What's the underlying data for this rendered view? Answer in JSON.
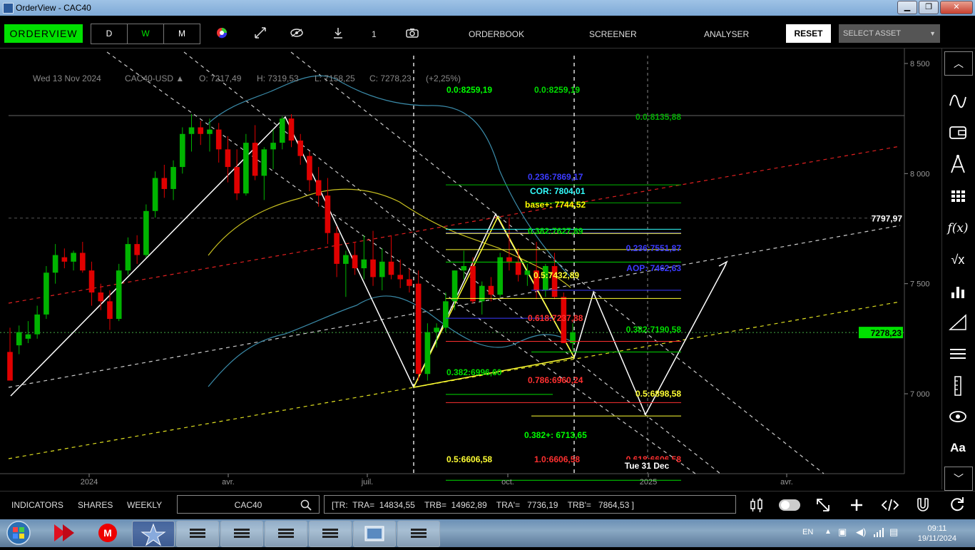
{
  "window": {
    "title": "OrderView - CAC40",
    "min": "▁",
    "max": "❐",
    "close": "✕"
  },
  "toolbar": {
    "overview_label": "ORDERVIEW",
    "periods": [
      "D",
      "W",
      "M"
    ],
    "count": "1",
    "orderbook": "ORDERBOOK",
    "screener": "SCREENER",
    "analyser": "ANALYSER",
    "reset": "RESET",
    "select_asset": "SELECT ASSET"
  },
  "colors": {
    "accent_green": "#00e000",
    "candle_up": "#00b400",
    "candle_down": "#e00000",
    "fib_green": "#00dd00",
    "fib_blue": "#3b3bff",
    "fib_red": "#ff3030",
    "fib_yellow": "#ffff33"
  },
  "chart_data": {
    "type": "candlestick",
    "header": {
      "date": "Wed 13 Nov 2024",
      "symbol": "CAC40-USD ▲",
      "open": "O: 7217,49",
      "high": "H: 7319,53",
      "low": "L: 7158,25",
      "close": "C: 7278,23",
      "change": "(+2,25%)"
    },
    "y_ticks": [
      8500,
      8000,
      7500,
      7000
    ],
    "y_tick_labels": [
      "8 500",
      "8 000",
      "7 500",
      "7 000"
    ],
    "ylim": [
      6700,
      8560
    ],
    "x_tick_labels": [
      "2024",
      "avr.",
      "juil.",
      "oct.",
      "2025",
      "avr."
    ],
    "price_tags": [
      {
        "label": "7797,97",
        "value": 7797.97
      },
      {
        "label": "7278,23",
        "value": 7278.23
      }
    ],
    "crosshair_date": "Tue 31 Dec",
    "candles": [
      [
        7190,
        7300,
        7060,
        7060
      ],
      [
        7220,
        7310,
        7180,
        7280
      ],
      [
        7250,
        7330,
        7230,
        7270
      ],
      [
        7270,
        7400,
        7250,
        7360
      ],
      [
        7360,
        7580,
        7340,
        7550
      ],
      [
        7550,
        7680,
        7500,
        7630
      ],
      [
        7620,
        7660,
        7570,
        7600
      ],
      [
        7600,
        7650,
        7560,
        7640
      ],
      [
        7640,
        7690,
        7550,
        7560
      ],
      [
        7560,
        7600,
        7400,
        7460
      ],
      [
        7460,
        7500,
        7380,
        7420
      ],
      [
        7420,
        7470,
        7290,
        7340
      ],
      [
        7340,
        7590,
        7330,
        7560
      ],
      [
        7560,
        7710,
        7540,
        7680
      ],
      [
        7680,
        7720,
        7590,
        7630
      ],
      [
        7630,
        7860,
        7620,
        7830
      ],
      [
        7830,
        8010,
        7800,
        7980
      ],
      [
        7980,
        8040,
        7890,
        7930
      ],
      [
        7930,
        8060,
        7880,
        8030
      ],
      [
        8030,
        8210,
        8000,
        8180
      ],
      [
        8180,
        8270,
        8100,
        8210
      ],
      [
        8210,
        8240,
        8130,
        8180
      ],
      [
        8180,
        8250,
        8100,
        8200
      ],
      [
        8200,
        8230,
        8050,
        8110
      ],
      [
        8110,
        8170,
        7960,
        8030
      ],
      [
        8030,
        8110,
        7880,
        7910
      ],
      [
        7910,
        8180,
        7900,
        8140
      ],
      [
        8140,
        8220,
        7970,
        7990
      ],
      [
        7990,
        8120,
        7880,
        8110
      ],
      [
        8110,
        8200,
        8020,
        8140
      ],
      [
        8140,
        8260,
        8110,
        8250
      ],
      [
        8250,
        8270,
        8120,
        8150
      ],
      [
        8150,
        8180,
        8040,
        8080
      ],
      [
        8080,
        8100,
        7920,
        7970
      ],
      [
        7970,
        8030,
        7850,
        7900
      ],
      [
        7900,
        7980,
        7680,
        7730
      ],
      [
        7730,
        7760,
        7530,
        7590
      ],
      [
        7590,
        7650,
        7440,
        7630
      ],
      [
        7630,
        7690,
        7540,
        7570
      ],
      [
        7570,
        7720,
        7520,
        7610
      ],
      [
        7610,
        7740,
        7490,
        7530
      ],
      [
        7530,
        7660,
        7470,
        7600
      ],
      [
        7600,
        7720,
        7520,
        7540
      ],
      [
        7540,
        7610,
        7480,
        7520
      ],
      [
        7520,
        7570,
        7460,
        7490
      ],
      [
        7500,
        7560,
        7060,
        7090
      ],
      [
        7090,
        7320,
        7060,
        7280
      ],
      [
        7280,
        7320,
        7210,
        7300
      ],
      [
        7300,
        7460,
        7280,
        7420
      ],
      [
        7420,
        7560,
        7380,
        7560
      ],
      [
        7560,
        7650,
        7520,
        7580
      ],
      [
        7580,
        7620,
        7410,
        7420
      ],
      [
        7420,
        7510,
        7360,
        7490
      ],
      [
        7490,
        7530,
        7420,
        7450
      ],
      [
        7450,
        7640,
        7440,
        7620
      ],
      [
        7620,
        7800,
        7560,
        7600
      ],
      [
        7600,
        7660,
        7510,
        7540
      ],
      [
        7540,
        7590,
        7490,
        7560
      ],
      [
        7560,
        7690,
        7430,
        7470
      ],
      [
        7470,
        7590,
        7440,
        7580
      ],
      [
        7580,
        7640,
        7430,
        7440
      ],
      [
        7440,
        7460,
        7230,
        7230
      ],
      [
        7230,
        7320,
        7200,
        7280
      ]
    ],
    "fib_labels": [
      {
        "text": "0.0:8259,19",
        "color": "#00ff00",
        "value": 8259.19,
        "date": "jul",
        "pos": "a"
      },
      {
        "text": "0.0:8259,19",
        "color": "#00dd00",
        "value": 8259.19,
        "date": "oct",
        "pos": "b"
      },
      {
        "text": "0.0:8135,88",
        "color": "#00aa00",
        "value": 8135.88,
        "pos": "c"
      },
      {
        "text": "0.236:7869,17",
        "color": "#3b3bff",
        "value": 7869.17,
        "pos": "d"
      },
      {
        "text": "COR: 7804,01",
        "color": "#33ffff",
        "value": 7804.01,
        "pos": "e"
      },
      {
        "text": "base+: 7744,52",
        "color": "#ffff00",
        "value": 7744.52,
        "pos": "f"
      },
      {
        "text": "0.382:7627,89",
        "color": "#00dd00",
        "value": 7627.89,
        "pos": "g"
      },
      {
        "text": "0.236:7551,87",
        "color": "#3b3bff",
        "value": 7551.87,
        "pos": "h"
      },
      {
        "text": "AOP: 7462,63",
        "color": "#3b3bff",
        "value": 7462.63,
        "pos": "i"
      },
      {
        "text": "0.5:7432,89",
        "color": "#ffff33",
        "value": 7432.89,
        "pos": "j"
      },
      {
        "text": "0.618:7237,88",
        "color": "#ff3030",
        "value": 7237.88,
        "pos": "k"
      },
      {
        "text": "0.382:7190,58",
        "color": "#00dd00",
        "value": 7190.58,
        "pos": "l"
      },
      {
        "text": "0.382:6996,60",
        "color": "#00dd00",
        "value": 6996.6,
        "pos": "m"
      },
      {
        "text": "0.786:6960,24",
        "color": "#ff3030",
        "value": 6960.24,
        "pos": "n"
      },
      {
        "text": "0.5:6898,58",
        "color": "#ffff33",
        "value": 6898.58,
        "pos": "o"
      },
      {
        "text": "0.382+: 6713,65",
        "color": "#00ff00",
        "value": 6713.65,
        "pos": "p"
      },
      {
        "text": "0.5:6606,58",
        "color": "#ffff33",
        "value": 6606.58,
        "pos": "q"
      },
      {
        "text": "1.0:6606,58",
        "color": "#ff3030",
        "value": 6606.58,
        "pos": "r"
      },
      {
        "text": "0.618:6606,58",
        "color": "#ff3030",
        "value": 6606.58,
        "pos": "s"
      }
    ]
  },
  "bottom": {
    "indicators": "INDICATORS",
    "shares": "SHARES",
    "weekly": "WEEKLY",
    "symbol": "CAC40",
    "tr_info": "[TR:  TRA=  14834,55    TRB=  14962,89    TRA'=   7736,19    TRB'=   7864,53 ]"
  },
  "taskbar": {
    "lang": "EN",
    "time": "09:11",
    "date": "19/11/2024"
  }
}
